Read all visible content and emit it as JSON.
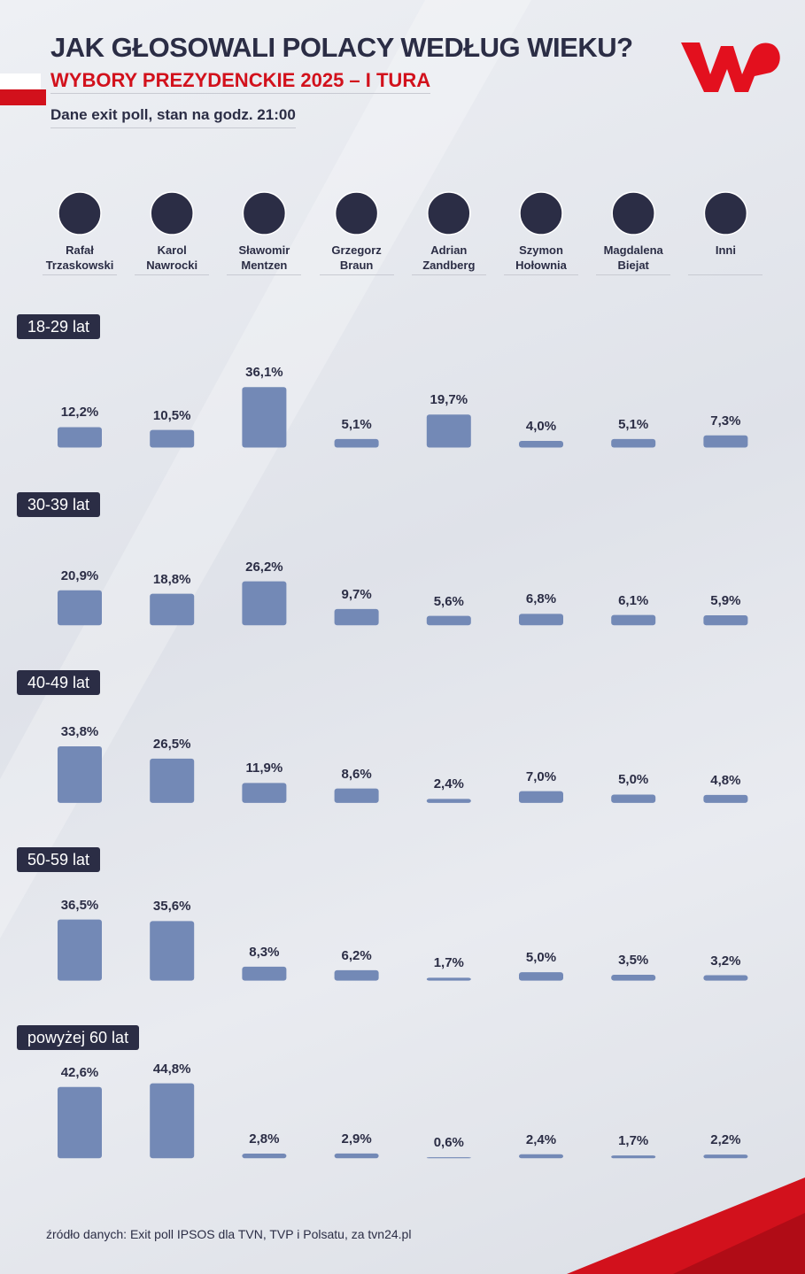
{
  "chart_data": {
    "type": "bar",
    "title": "JAK GŁOSOWALI POLACY WEDŁUG WIEKU?",
    "subtitle": "WYBORY PREZYDENCKIE 2025 – I TURA",
    "note": "Dane exit poll, stan na godz. 21:00",
    "source": "źródło danych: Exit poll IPSOS dla TVN, TVP i Polsatu, za tvn24.pl",
    "color": "#7389b6",
    "categories": [
      "Rafał Trzaskowski",
      "Karol Nawrocki",
      "Sławomir Mentzen",
      "Grzegorz Braun",
      "Adrian Zandberg",
      "Szymon Hołownia",
      "Magdalena Biejat",
      "Inni"
    ],
    "series": [
      {
        "name": "18-29 lat",
        "values": [
          12.2,
          10.5,
          36.1,
          5.1,
          19.7,
          4.0,
          5.1,
          7.3
        ],
        "value_labels": [
          "12,2%",
          "10,5%",
          "36,1%",
          "5,1%",
          "19,7%",
          "4,0%",
          "5,1%",
          "7,3%"
        ]
      },
      {
        "name": "30-39 lat",
        "values": [
          20.9,
          18.8,
          26.2,
          9.7,
          5.6,
          6.8,
          6.1,
          5.9
        ],
        "value_labels": [
          "20,9%",
          "18,8%",
          "26,2%",
          "9,7%",
          "5,6%",
          "6,8%",
          "6,1%",
          "5,9%"
        ]
      },
      {
        "name": "40-49 lat",
        "values": [
          33.8,
          26.5,
          11.9,
          8.6,
          2.4,
          7.0,
          5.0,
          4.8
        ],
        "value_labels": [
          "33,8%",
          "26,5%",
          "11,9%",
          "8,6%",
          "2,4%",
          "7,0%",
          "5,0%",
          "4,8%"
        ]
      },
      {
        "name": "50-59 lat",
        "values": [
          36.5,
          35.6,
          8.3,
          6.2,
          1.7,
          5.0,
          3.5,
          3.2
        ],
        "value_labels": [
          "36,5%",
          "35,6%",
          "8,3%",
          "6,2%",
          "1,7%",
          "5,0%",
          "3,5%",
          "3,2%"
        ]
      },
      {
        "name": "powyżej 60 lat",
        "values": [
          42.6,
          44.8,
          2.8,
          2.9,
          0.6,
          2.4,
          1.7,
          2.2
        ],
        "value_labels": [
          "42,6%",
          "44,8%",
          "2,8%",
          "2,9%",
          "0,6%",
          "2,4%",
          "1,7%",
          "2,2%"
        ]
      }
    ]
  }
}
